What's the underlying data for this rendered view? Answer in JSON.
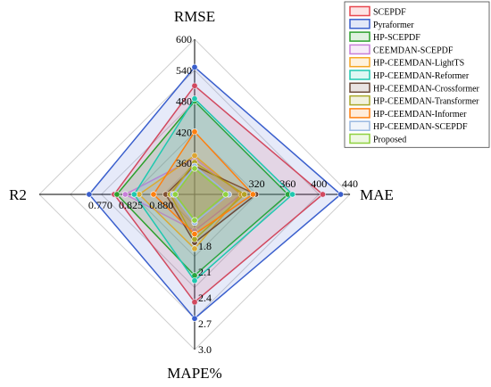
{
  "chart_data": {
    "type": "radar",
    "axes": [
      {
        "name": "RMSE",
        "min": 300,
        "max": 600,
        "ticks": [
          360,
          420,
          480,
          540,
          600
        ],
        "tick_labels": [
          "360",
          "420",
          "480",
          "540",
          "600"
        ]
      },
      {
        "name": "MAE",
        "min": 240,
        "max": 440,
        "ticks": [
          320,
          360,
          400,
          440
        ],
        "tick_labels": [
          "320",
          "360",
          "400",
          "440"
        ]
      },
      {
        "name": "MAPE%",
        "min": 1.2,
        "max": 3.0,
        "ticks": [
          1.8,
          2.1,
          2.4,
          2.7,
          3.0
        ],
        "tick_labels": [
          "1.8",
          "2.1",
          "2.4",
          "2.7",
          "3.0"
        ]
      },
      {
        "name": "R2",
        "min": 0.66,
        "max": 0.94,
        "inverted": true,
        "ticks": [
          0.77,
          0.825,
          0.88
        ],
        "tick_labels": [
          "0.770",
          "0.825",
          "0.880"
        ]
      }
    ],
    "series": [
      {
        "name": "SCEPDF",
        "color": "#e8474f",
        "RMSE": 510,
        "MAE": 405,
        "MAPE%": 2.45,
        "R2": 0.795
      },
      {
        "name": "Pyraformer",
        "color": "#3a5fcd",
        "RMSE": 546,
        "MAE": 428,
        "MAPE%": 2.64,
        "R2": 0.75
      },
      {
        "name": "HP-SCEPDF",
        "color": "#2ca02c",
        "RMSE": 480,
        "MAE": 360,
        "MAPE%": 2.14,
        "R2": 0.8
      },
      {
        "name": "CEEMDAN-SCEPDF",
        "color": "#c77fd8",
        "RMSE": 370,
        "MAE": 300,
        "MAPE%": 1.62,
        "R2": 0.815
      },
      {
        "name": "HP-CEEMDAN-LightTS",
        "color": "#f5a623",
        "RMSE": 375,
        "MAE": 300,
        "MAPE%": 1.83,
        "R2": 0.84
      },
      {
        "name": "HP-CEEMDAN-Reformer",
        "color": "#1fc8b0",
        "RMSE": 485,
        "MAE": 366,
        "MAPE%": 2.2,
        "R2": 0.831
      },
      {
        "name": "HP-CEEMDAN-Crossformer",
        "color": "#6b4a3a",
        "RMSE": 355,
        "MAE": 319,
        "MAPE%": 1.76,
        "R2": 0.888
      },
      {
        "name": "HP-CEEMDAN-Transformer",
        "color": "#a8a829",
        "RMSE": 362,
        "MAE": 304,
        "MAPE%": 1.72,
        "R2": 0.896
      },
      {
        "name": "HP-CEEMDAN-Informer",
        "color": "#ff7f0e",
        "RMSE": 421,
        "MAE": 315,
        "MAPE%": 1.66,
        "R2": 0.866
      },
      {
        "name": "HP-CEEMDAN-SCEPDF",
        "color": "#9ab8e0",
        "RMSE": 355,
        "MAE": 284,
        "MAPE%": 1.53,
        "R2": 0.901
      },
      {
        "name": "Proposed",
        "color": "#8fd13f",
        "RMSE": 350,
        "MAE": 280,
        "MAPE%": 1.5,
        "R2": 0.905
      }
    ],
    "legend": "top-right",
    "grid": true
  }
}
